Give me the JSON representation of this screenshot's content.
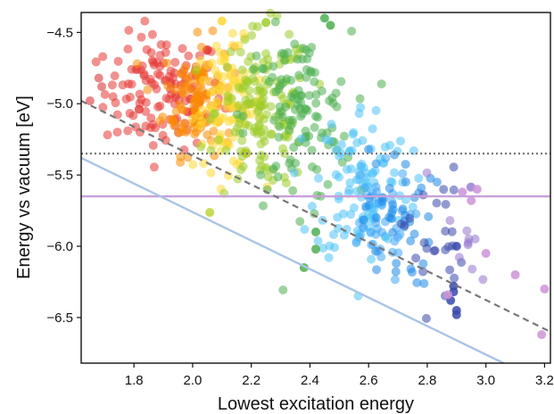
{
  "chart_data": {
    "type": "scatter",
    "title": "",
    "xlabel": "Lowest excitation energy",
    "ylabel": "Energy vs vacuum [eV]",
    "xlim": [
      1.62,
      3.22
    ],
    "ylim": [
      -6.82,
      -4.36
    ],
    "x_ticks": [
      1.8,
      2.0,
      2.2,
      2.4,
      2.6,
      2.8,
      3.0,
      3.2
    ],
    "x_tick_labels": [
      "1.8",
      "2.0",
      "2.2",
      "2.4",
      "2.6",
      "2.8",
      "3.0",
      "3.2"
    ],
    "y_ticks": [
      -4.5,
      -5.0,
      -5.5,
      -6.0,
      -6.5
    ],
    "y_tick_labels": [
      "−4.5",
      "−5.0",
      "−5.5",
      "−6.0",
      "−6.5"
    ],
    "grid": false,
    "reference_lines": [
      {
        "kind": "horizontal",
        "style": "dotted",
        "color": "#777777",
        "y": -5.35
      },
      {
        "kind": "horizontal",
        "style": "solid",
        "color": "#c8a0d8",
        "y": -5.65
      },
      {
        "kind": "diagonal",
        "style": "dashed",
        "color": "#777777",
        "x1": 1.62,
        "y1": -4.98,
        "x2": 3.22,
        "y2": -6.6
      },
      {
        "kind": "diagonal",
        "style": "solid",
        "color": "#a9c4e6",
        "x1": 1.62,
        "y1": -5.38,
        "x2": 3.06,
        "y2": -6.82
      }
    ],
    "point_groups": [
      {
        "color": "#e53935",
        "x_center": 1.9,
        "x_spread": 0.1,
        "y_center": -4.92,
        "y_spread": 0.2,
        "count": 140
      },
      {
        "color": "#fb8c00",
        "x_center": 2.02,
        "x_spread": 0.06,
        "y_center": -4.95,
        "y_spread": 0.2,
        "count": 110
      },
      {
        "color": "#fdd835",
        "x_center": 2.12,
        "x_spread": 0.06,
        "y_center": -5.02,
        "y_spread": 0.22,
        "count": 100
      },
      {
        "color": "#9ccc2a",
        "x_center": 2.24,
        "x_spread": 0.08,
        "y_center": -5.05,
        "y_spread": 0.28,
        "count": 150
      },
      {
        "color": "#4caf50",
        "x_center": 2.36,
        "x_spread": 0.09,
        "y_center": -5.1,
        "y_spread": 0.3,
        "count": 120
      },
      {
        "color": "#4fc3f7",
        "x_center": 2.58,
        "x_spread": 0.08,
        "y_center": -5.55,
        "y_spread": 0.28,
        "count": 110
      },
      {
        "color": "#42a5f5",
        "x_center": 2.62,
        "x_spread": 0.06,
        "y_center": -5.85,
        "y_spread": 0.2,
        "count": 45
      },
      {
        "color": "#1e88e5",
        "x_center": 2.7,
        "x_spread": 0.06,
        "y_center": -5.8,
        "y_spread": 0.25,
        "count": 40
      },
      {
        "color": "#3949ab",
        "x_center": 2.82,
        "x_spread": 0.05,
        "y_center": -5.95,
        "y_spread": 0.25,
        "count": 25
      },
      {
        "color": "#9575cd",
        "x_center": 2.92,
        "x_spread": 0.06,
        "y_center": -5.9,
        "y_spread": 0.3,
        "count": 12
      }
    ],
    "extra_points": [
      {
        "x": 1.65,
        "y": -4.98,
        "color": "#e57373"
      },
      {
        "x": 1.68,
        "y": -4.82,
        "color": "#e57373"
      },
      {
        "x": 1.69,
        "y": -4.88,
        "color": "#e57373"
      },
      {
        "x": 2.1,
        "y": -4.42,
        "color": "#fdd835"
      },
      {
        "x": 2.25,
        "y": -4.43,
        "color": "#9ccc2a"
      },
      {
        "x": 2.45,
        "y": -4.4,
        "color": "#4caf50"
      },
      {
        "x": 2.47,
        "y": -4.45,
        "color": "#4caf50"
      },
      {
        "x": 2.38,
        "y": -6.15,
        "color": "#4caf50"
      },
      {
        "x": 2.42,
        "y": -5.9,
        "color": "#4caf50"
      },
      {
        "x": 2.42,
        "y": -6.02,
        "color": "#4caf50"
      },
      {
        "x": 2.89,
        "y": -6.28,
        "color": "#3949ab"
      },
      {
        "x": 2.89,
        "y": -6.32,
        "color": "#3949ab"
      },
      {
        "x": 2.9,
        "y": -6.45,
        "color": "#3949ab"
      },
      {
        "x": 2.9,
        "y": -6.48,
        "color": "#3949ab"
      },
      {
        "x": 2.88,
        "y": -6.38,
        "color": "#3949ab"
      },
      {
        "x": 2.9,
        "y": -6.0,
        "color": "#3949ab"
      },
      {
        "x": 2.87,
        "y": -6.34,
        "color": "#ce93d8"
      },
      {
        "x": 2.92,
        "y": -5.62,
        "color": "#ce93d8"
      },
      {
        "x": 2.95,
        "y": -5.68,
        "color": "#ce93d8"
      },
      {
        "x": 2.97,
        "y": -5.6,
        "color": "#ce93d8"
      },
      {
        "x": 3.0,
        "y": -6.05,
        "color": "#ce93d8"
      },
      {
        "x": 3.1,
        "y": -6.2,
        "color": "#ce93d8"
      },
      {
        "x": 3.19,
        "y": -6.62,
        "color": "#ce93d8"
      },
      {
        "x": 3.2,
        "y": -6.3,
        "color": "#ce93d8"
      }
    ]
  }
}
